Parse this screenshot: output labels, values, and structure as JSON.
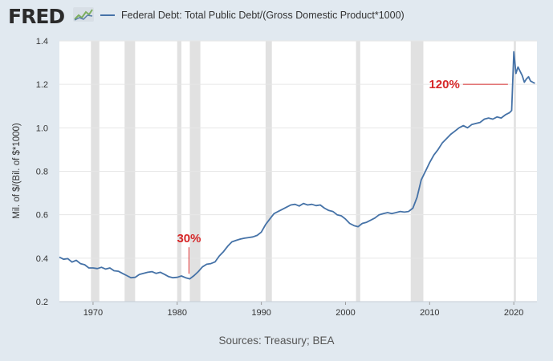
{
  "header": {
    "logo_text": "FRED",
    "logo_graph": "fred-graph-icon",
    "legend_label": "Federal Debt: Total Public Debt/(Gross Domestic Product*1000)",
    "legend_color": "#4572a7"
  },
  "source": "Sources: Treasury; BEA",
  "colors": {
    "line": "#4572a7",
    "recession": "#e1e1e1",
    "annotation": "#d62728",
    "plot_bg": "#ffffff",
    "page_bg": "#e1e9f0"
  },
  "chart_data": {
    "type": "line",
    "title": "",
    "xlabel": "",
    "ylabel": "Mil. of $/(Bil. of $*1000)",
    "xlim": [
      1966.0,
      2022.75
    ],
    "ylim": [
      0.2,
      1.4
    ],
    "x_ticks": [
      1970,
      1980,
      1990,
      2000,
      2010,
      2020
    ],
    "x_tick_labels": [
      "1970",
      "1980",
      "1990",
      "2000",
      "2010",
      "2020"
    ],
    "y_ticks": [
      0.2,
      0.4,
      0.6,
      0.8,
      1.0,
      1.2,
      1.4
    ],
    "y_tick_labels": [
      "0.2",
      "0.4",
      "0.6",
      "0.8",
      "1.0",
      "1.2",
      "1.4"
    ],
    "grid": "horizontal",
    "recessions": [
      [
        1969.75,
        1970.75
      ],
      [
        1973.75,
        1975.0
      ],
      [
        1980.0,
        1980.5
      ],
      [
        1981.5,
        1982.75
      ],
      [
        1990.5,
        1991.25
      ],
      [
        2001.25,
        2001.75
      ],
      [
        2007.75,
        2009.25
      ],
      [
        2020.0,
        2020.25
      ]
    ],
    "series": [
      {
        "name": "Federal Debt: Total Public Debt/(Gross Domestic Product*1000)",
        "x": [
          1966.0,
          1966.5,
          1967.0,
          1967.5,
          1968.0,
          1968.5,
          1969.0,
          1969.5,
          1970.0,
          1970.5,
          1971.0,
          1971.5,
          1972.0,
          1972.5,
          1973.0,
          1973.5,
          1974.0,
          1974.5,
          1975.0,
          1975.5,
          1976.0,
          1976.5,
          1977.0,
          1977.5,
          1978.0,
          1978.5,
          1979.0,
          1979.5,
          1980.0,
          1980.5,
          1981.0,
          1981.5,
          1982.0,
          1982.5,
          1983.0,
          1983.5,
          1984.0,
          1984.5,
          1985.0,
          1985.5,
          1986.0,
          1986.5,
          1987.0,
          1987.5,
          1988.0,
          1988.5,
          1989.0,
          1989.5,
          1990.0,
          1990.5,
          1991.0,
          1991.5,
          1992.0,
          1992.5,
          1993.0,
          1993.5,
          1994.0,
          1994.5,
          1995.0,
          1995.5,
          1996.0,
          1996.5,
          1997.0,
          1997.5,
          1998.0,
          1998.5,
          1999.0,
          1999.5,
          2000.0,
          2000.5,
          2001.0,
          2001.5,
          2002.0,
          2002.5,
          2003.0,
          2003.5,
          2004.0,
          2004.5,
          2005.0,
          2005.5,
          2006.0,
          2006.5,
          2007.0,
          2007.5,
          2008.0,
          2008.5,
          2009.0,
          2009.5,
          2010.0,
          2010.5,
          2011.0,
          2011.5,
          2012.0,
          2012.5,
          2013.0,
          2013.5,
          2014.0,
          2014.5,
          2015.0,
          2015.5,
          2016.0,
          2016.5,
          2017.0,
          2017.5,
          2018.0,
          2018.5,
          2019.0,
          2019.5,
          2019.75,
          2020.0,
          2020.25,
          2020.5,
          2020.75,
          2021.0,
          2021.25,
          2021.5,
          2021.75,
          2022.0,
          2022.25,
          2022.5
        ],
        "values": [
          0.405,
          0.395,
          0.398,
          0.382,
          0.39,
          0.375,
          0.37,
          0.355,
          0.355,
          0.352,
          0.358,
          0.35,
          0.355,
          0.342,
          0.34,
          0.33,
          0.32,
          0.31,
          0.312,
          0.325,
          0.33,
          0.335,
          0.338,
          0.33,
          0.335,
          0.325,
          0.315,
          0.31,
          0.312,
          0.318,
          0.31,
          0.305,
          0.32,
          0.338,
          0.36,
          0.372,
          0.375,
          0.383,
          0.41,
          0.43,
          0.455,
          0.475,
          0.482,
          0.488,
          0.492,
          0.495,
          0.498,
          0.505,
          0.52,
          0.555,
          0.58,
          0.605,
          0.615,
          0.625,
          0.635,
          0.645,
          0.648,
          0.64,
          0.652,
          0.645,
          0.648,
          0.642,
          0.645,
          0.63,
          0.62,
          0.615,
          0.6,
          0.595,
          0.58,
          0.56,
          0.55,
          0.545,
          0.56,
          0.565,
          0.575,
          0.585,
          0.6,
          0.605,
          0.61,
          0.605,
          0.61,
          0.615,
          0.612,
          0.615,
          0.63,
          0.68,
          0.76,
          0.8,
          0.84,
          0.875,
          0.9,
          0.93,
          0.95,
          0.97,
          0.985,
          1.0,
          1.01,
          1.0,
          1.015,
          1.02,
          1.025,
          1.04,
          1.045,
          1.04,
          1.05,
          1.045,
          1.06,
          1.07,
          1.08,
          1.35,
          1.25,
          1.28,
          1.26,
          1.24,
          1.21,
          1.225,
          1.235,
          1.215,
          1.21,
          1.205
        ]
      }
    ],
    "annotations": [
      {
        "text": "30%",
        "x": 1981.4,
        "y": 0.31
      },
      {
        "text": "120%",
        "x": 2019.3,
        "y": 1.2
      }
    ]
  }
}
